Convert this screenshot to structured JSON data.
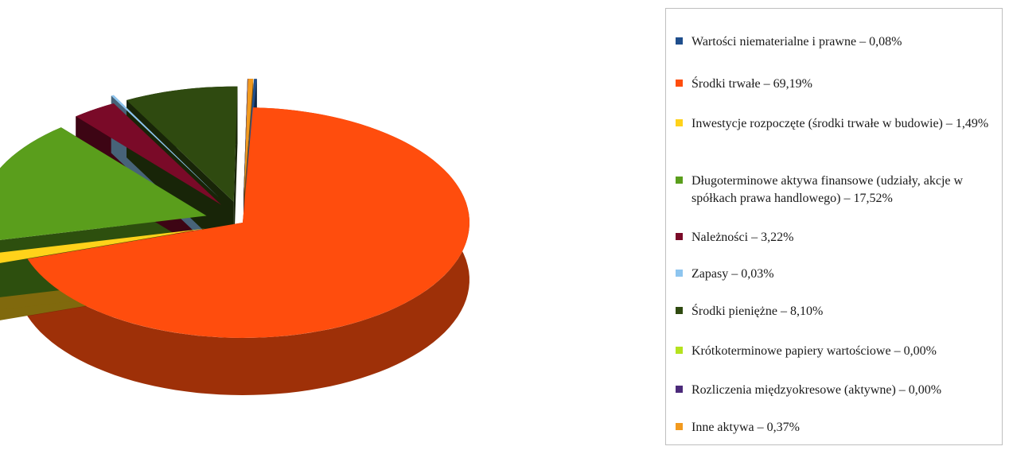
{
  "chart_data": {
    "type": "pie",
    "style": "3d-exploded",
    "legend_position": "right",
    "series": [
      {
        "label": "Wartości niematerialne i prawne – 0,08%",
        "value": 0.08,
        "color": "#1f4e8c"
      },
      {
        "label": "Środki trwałe – 69,19%",
        "value": 69.19,
        "color": "#ff4d0d"
      },
      {
        "label": "Inwestycje rozpoczęte (środki trwałe w budowie) – 1,49%",
        "value": 1.49,
        "color": "#ffd21a"
      },
      {
        "label": "Długoterminowe aktywa finansowe (udziały, akcje w spółkach prawa handlowego) – 17,52%",
        "value": 17.52,
        "color": "#5a9e1c"
      },
      {
        "label": "Należności – 3,22%",
        "value": 3.22,
        "color": "#7a0a28"
      },
      {
        "label": "Zapasy – 0,03%",
        "value": 0.03,
        "color": "#8ec5ef"
      },
      {
        "label": "Środki pieniężne – 8,10%",
        "value": 8.1,
        "color": "#2f4a10"
      },
      {
        "label": "Krótkoterminowe papiery wartościowe – 0,00%",
        "value": 0.0,
        "color": "#b5e21e"
      },
      {
        "label": "Rozliczenia międzyokresowe (aktywne) – 0,00%",
        "value": 0.0,
        "color": "#4b2a7a"
      },
      {
        "label": "Inne aktywa – 0,37%",
        "value": 0.37,
        "color": "#f29a1f"
      }
    ]
  }
}
